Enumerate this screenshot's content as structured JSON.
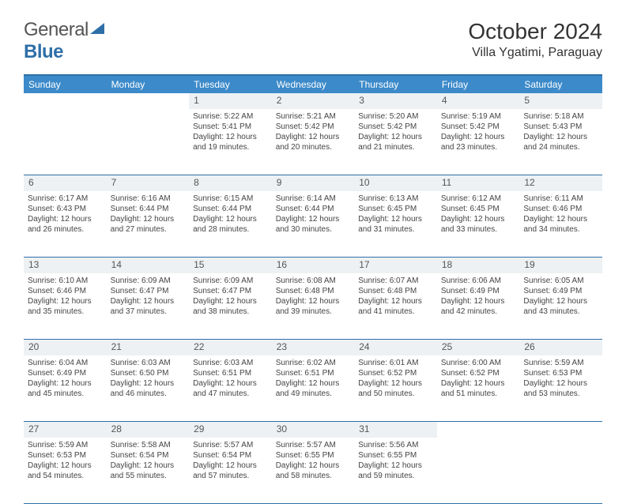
{
  "brand": {
    "name_a": "General",
    "name_b": "Blue"
  },
  "title": "October 2024",
  "location": "Villa Ygatimi, Paraguay",
  "header_bg": "#3c8ac9",
  "border_color": "#2e6fa8",
  "daynum_bg": "#eef1f3",
  "text_color": "#444444",
  "day_fontsize": 10,
  "header_fontsize": 12,
  "days": [
    "Sunday",
    "Monday",
    "Tuesday",
    "Wednesday",
    "Thursday",
    "Friday",
    "Saturday"
  ],
  "weeks": [
    {
      "nums": [
        "",
        "",
        "1",
        "2",
        "3",
        "4",
        "5"
      ],
      "cells": [
        null,
        null,
        {
          "sr": "5:22 AM",
          "ss": "5:41 PM",
          "dl": "12 hours and 19 minutes."
        },
        {
          "sr": "5:21 AM",
          "ss": "5:42 PM",
          "dl": "12 hours and 20 minutes."
        },
        {
          "sr": "5:20 AM",
          "ss": "5:42 PM",
          "dl": "12 hours and 21 minutes."
        },
        {
          "sr": "5:19 AM",
          "ss": "5:42 PM",
          "dl": "12 hours and 23 minutes."
        },
        {
          "sr": "5:18 AM",
          "ss": "5:43 PM",
          "dl": "12 hours and 24 minutes."
        }
      ]
    },
    {
      "nums": [
        "6",
        "7",
        "8",
        "9",
        "10",
        "11",
        "12"
      ],
      "cells": [
        {
          "sr": "6:17 AM",
          "ss": "6:43 PM",
          "dl": "12 hours and 26 minutes."
        },
        {
          "sr": "6:16 AM",
          "ss": "6:44 PM",
          "dl": "12 hours and 27 minutes."
        },
        {
          "sr": "6:15 AM",
          "ss": "6:44 PM",
          "dl": "12 hours and 28 minutes."
        },
        {
          "sr": "6:14 AM",
          "ss": "6:44 PM",
          "dl": "12 hours and 30 minutes."
        },
        {
          "sr": "6:13 AM",
          "ss": "6:45 PM",
          "dl": "12 hours and 31 minutes."
        },
        {
          "sr": "6:12 AM",
          "ss": "6:45 PM",
          "dl": "12 hours and 33 minutes."
        },
        {
          "sr": "6:11 AM",
          "ss": "6:46 PM",
          "dl": "12 hours and 34 minutes."
        }
      ]
    },
    {
      "nums": [
        "13",
        "14",
        "15",
        "16",
        "17",
        "18",
        "19"
      ],
      "cells": [
        {
          "sr": "6:10 AM",
          "ss": "6:46 PM",
          "dl": "12 hours and 35 minutes."
        },
        {
          "sr": "6:09 AM",
          "ss": "6:47 PM",
          "dl": "12 hours and 37 minutes."
        },
        {
          "sr": "6:09 AM",
          "ss": "6:47 PM",
          "dl": "12 hours and 38 minutes."
        },
        {
          "sr": "6:08 AM",
          "ss": "6:48 PM",
          "dl": "12 hours and 39 minutes."
        },
        {
          "sr": "6:07 AM",
          "ss": "6:48 PM",
          "dl": "12 hours and 41 minutes."
        },
        {
          "sr": "6:06 AM",
          "ss": "6:49 PM",
          "dl": "12 hours and 42 minutes."
        },
        {
          "sr": "6:05 AM",
          "ss": "6:49 PM",
          "dl": "12 hours and 43 minutes."
        }
      ]
    },
    {
      "nums": [
        "20",
        "21",
        "22",
        "23",
        "24",
        "25",
        "26"
      ],
      "cells": [
        {
          "sr": "6:04 AM",
          "ss": "6:49 PM",
          "dl": "12 hours and 45 minutes."
        },
        {
          "sr": "6:03 AM",
          "ss": "6:50 PM",
          "dl": "12 hours and 46 minutes."
        },
        {
          "sr": "6:03 AM",
          "ss": "6:51 PM",
          "dl": "12 hours and 47 minutes."
        },
        {
          "sr": "6:02 AM",
          "ss": "6:51 PM",
          "dl": "12 hours and 49 minutes."
        },
        {
          "sr": "6:01 AM",
          "ss": "6:52 PM",
          "dl": "12 hours and 50 minutes."
        },
        {
          "sr": "6:00 AM",
          "ss": "6:52 PM",
          "dl": "12 hours and 51 minutes."
        },
        {
          "sr": "5:59 AM",
          "ss": "6:53 PM",
          "dl": "12 hours and 53 minutes."
        }
      ]
    },
    {
      "nums": [
        "27",
        "28",
        "29",
        "30",
        "31",
        "",
        ""
      ],
      "cells": [
        {
          "sr": "5:59 AM",
          "ss": "6:53 PM",
          "dl": "12 hours and 54 minutes."
        },
        {
          "sr": "5:58 AM",
          "ss": "6:54 PM",
          "dl": "12 hours and 55 minutes."
        },
        {
          "sr": "5:57 AM",
          "ss": "6:54 PM",
          "dl": "12 hours and 57 minutes."
        },
        {
          "sr": "5:57 AM",
          "ss": "6:55 PM",
          "dl": "12 hours and 58 minutes."
        },
        {
          "sr": "5:56 AM",
          "ss": "6:55 PM",
          "dl": "12 hours and 59 minutes."
        },
        null,
        null
      ]
    }
  ],
  "labels": {
    "sunrise": "Sunrise:",
    "sunset": "Sunset:",
    "daylight": "Daylight:"
  }
}
